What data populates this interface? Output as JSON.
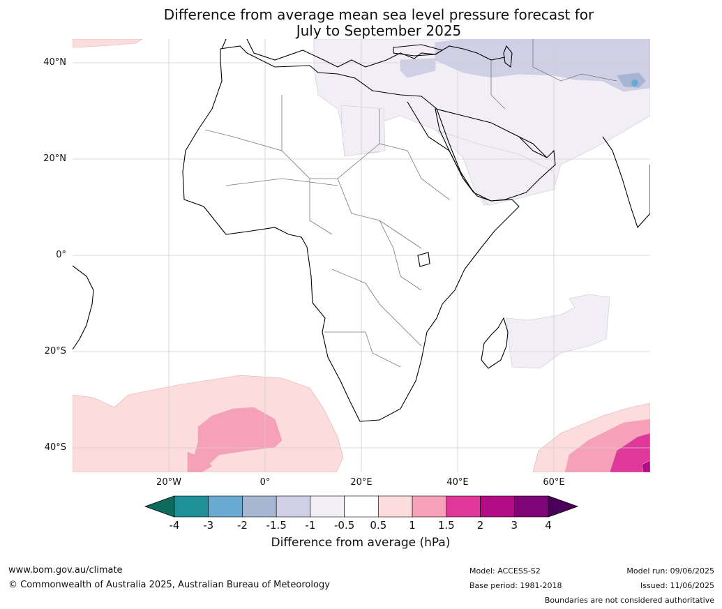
{
  "title": {
    "line1": "Difference from average mean sea level pressure forecast for",
    "line2": "July to September 2025"
  },
  "map": {
    "lat_labels": [
      "40°N",
      "20°N",
      "0°",
      "20°S",
      "40°S"
    ],
    "lon_labels": [
      "20°W",
      "0°",
      "20°E",
      "40°E",
      "60°E"
    ]
  },
  "colorbar": {
    "title": "Difference from average (hPa)",
    "ticks": [
      "-4",
      "-3",
      "-2",
      "-1.5",
      "-1",
      "-0.5",
      "0.5",
      "1",
      "1.5",
      "2",
      "3",
      "4"
    ],
    "colors": [
      "#0d6b5e",
      "#1d9197",
      "#6aaad2",
      "#a6b6d2",
      "#cfd0e6",
      "#f2eef6",
      "#ffffff",
      "#fcdcdc",
      "#f7a0ba",
      "#e0389a",
      "#b20c86",
      "#7e0478",
      "#4a005a"
    ]
  },
  "footer": {
    "website": "www.bom.gov.au/climate",
    "copyright": "© Commonwealth of Australia 2025, Australian Bureau of Meteorology",
    "model": "Model: ACCESS-S2",
    "base_period": "Base period: 1981-2018",
    "model_run": "Model run: 09/06/2025",
    "issued": "Issued: 11/06/2025",
    "disclaimer": "Boundaries are not considered authoritative"
  }
}
